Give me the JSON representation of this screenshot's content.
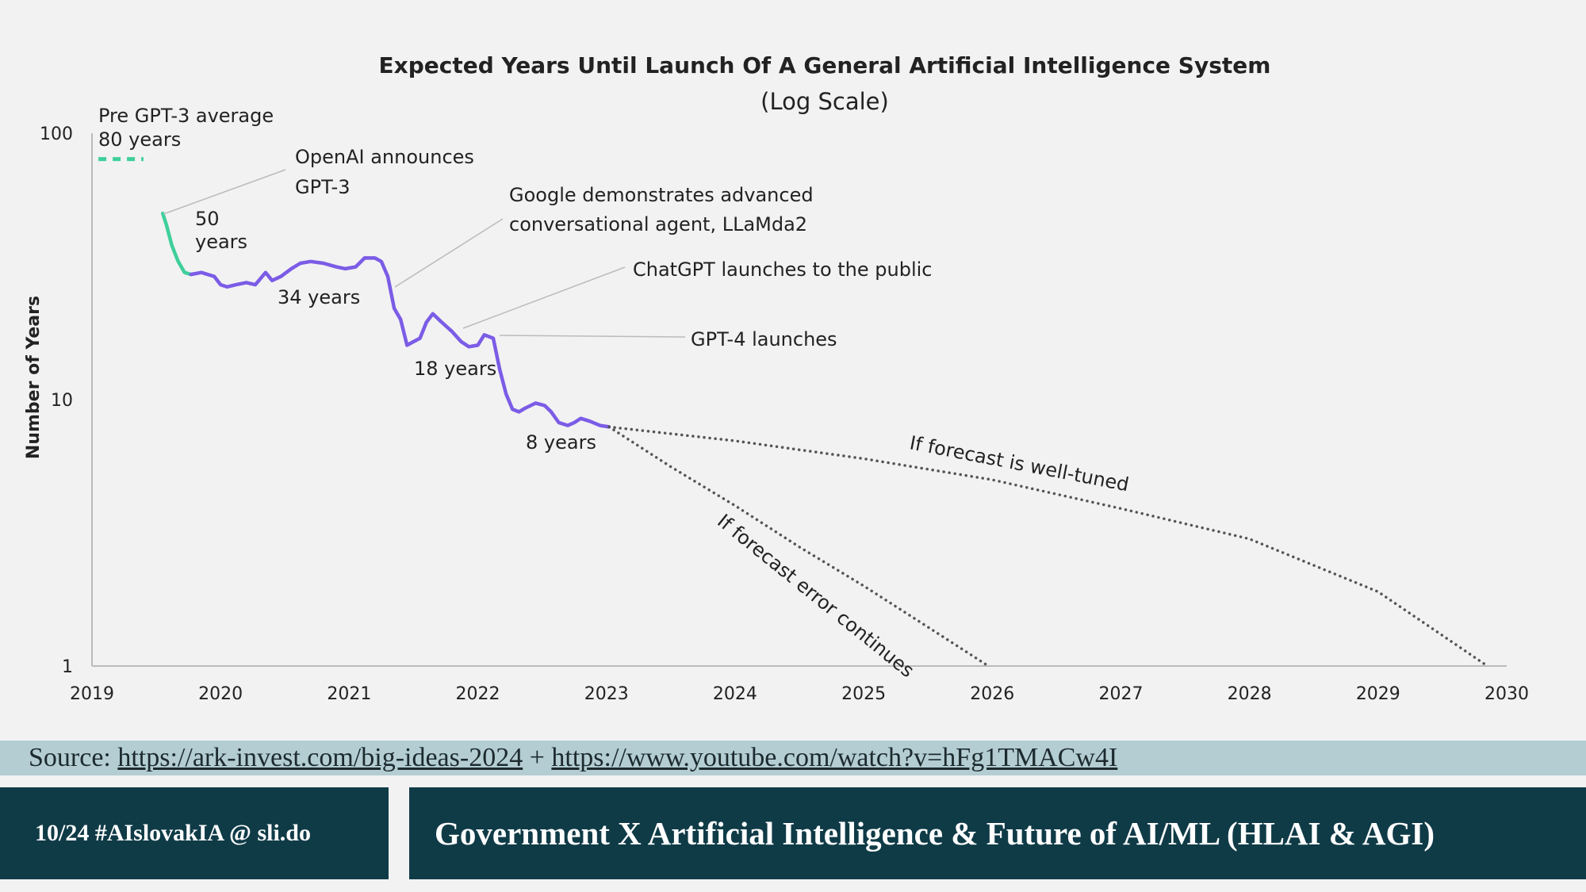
{
  "chart_data": {
    "type": "line",
    "title": "Expected Years Until Launch Of A General Artificial Intelligence System",
    "subtitle": "(Log Scale)",
    "xlabel": "",
    "ylabel": "Number of Years",
    "y_scale": "log",
    "ylim": [
      1,
      100
    ],
    "xlim": [
      2019,
      2030
    ],
    "y_ticks": [
      "1",
      "10",
      "100"
    ],
    "x_ticks": [
      "2019",
      "2020",
      "2021",
      "2022",
      "2023",
      "2024",
      "2025",
      "2026",
      "2027",
      "2028",
      "2029",
      "2030"
    ],
    "grid": false,
    "series": [
      {
        "name": "",
        "color": "#3ecf9b",
        "style": "solid",
        "x": [
          2019.55,
          2019.58,
          2019.62,
          2019.67,
          2019.72,
          2019.77
        ],
        "y": [
          50,
          45,
          38,
          33,
          30,
          29.5
        ]
      },
      {
        "name": "",
        "color": "#7b5ce6",
        "style": "solid",
        "x": [
          2019.77,
          2019.85,
          2019.95,
          2020.0,
          2020.05,
          2020.12,
          2020.2,
          2020.27,
          2020.35,
          2020.4,
          2020.47,
          2020.55,
          2020.62,
          2020.7,
          2020.8,
          2020.9,
          2020.97,
          2021.05,
          2021.12,
          2021.2,
          2021.25,
          2021.3,
          2021.35,
          2021.4,
          2021.45,
          2021.5,
          2021.55,
          2021.6,
          2021.65,
          2021.72,
          2021.8,
          2021.87,
          2021.93,
          2022.0,
          2022.05,
          2022.12,
          2022.17,
          2022.22,
          2022.27,
          2022.32,
          2022.37,
          2022.45,
          2022.52,
          2022.57,
          2022.63,
          2022.7,
          2022.75,
          2022.8,
          2022.87,
          2022.95,
          2023.02
        ],
        "y": [
          29.5,
          30,
          29,
          27,
          26.5,
          27,
          27.5,
          27,
          30,
          28,
          29,
          31,
          32.5,
          33,
          32.5,
          31.5,
          31,
          31.5,
          34,
          34,
          33,
          29,
          22,
          20,
          16,
          16.5,
          17,
          19.5,
          21,
          19.5,
          18,
          16.5,
          15.8,
          16,
          17.5,
          17,
          13,
          10.5,
          9.2,
          9.0,
          9.3,
          9.7,
          9.5,
          9.0,
          8.2,
          8.0,
          8.2,
          8.5,
          8.3,
          8.0,
          7.9
        ]
      },
      {
        "name": "",
        "color": "#555555",
        "style": "dotted",
        "x": [
          2023.02,
          2024,
          2025,
          2026,
          2027,
          2028,
          2029,
          2029.85
        ],
        "y": [
          7.9,
          7.0,
          6.0,
          5.0,
          3.9,
          3.0,
          1.9,
          1.0
        ]
      },
      {
        "name": "",
        "color": "#555555",
        "style": "dotted",
        "x": [
          2023.02,
          2023.5,
          2024,
          2024.5,
          2025,
          2025.5,
          2025.97
        ],
        "y": [
          7.9,
          5.6,
          4.0,
          2.8,
          2.0,
          1.4,
          1.0
        ]
      },
      {
        "name": "",
        "color": "#3ecf9b",
        "style": "dashed",
        "x": [
          2019.05,
          2019.4
        ],
        "y": [
          80,
          80
        ]
      }
    ],
    "annotations": [
      {
        "text": "Pre GPT-3 average",
        "line2": "80 years"
      },
      {
        "text": "OpenAI announces",
        "line2": "GPT-3"
      },
      {
        "text": "50",
        "line2": "years"
      },
      {
        "text": "34 years"
      },
      {
        "text": "Google demonstrates advanced",
        "line2": "conversational agent, LLaMda2"
      },
      {
        "text": "ChatGPT launches to the public"
      },
      {
        "text": "GPT-4 launches"
      },
      {
        "text": "18 years"
      },
      {
        "text": "8 years"
      },
      {
        "text": "If forecast is well-tuned"
      },
      {
        "text": "If forecast error continues"
      }
    ]
  },
  "source": {
    "label": "Source:",
    "link1": "https://ark-invest.com/big-ideas-2024",
    "separator": "+",
    "link2": "https://www.youtube.com/watch?v=hFg1TMACw4I"
  },
  "footer": {
    "slide_info": "10/24  #AIslovakIA @ sli.do",
    "title": "Government X Artificial Intelligence & Future of AI/ML (HLAI & AGI)"
  }
}
